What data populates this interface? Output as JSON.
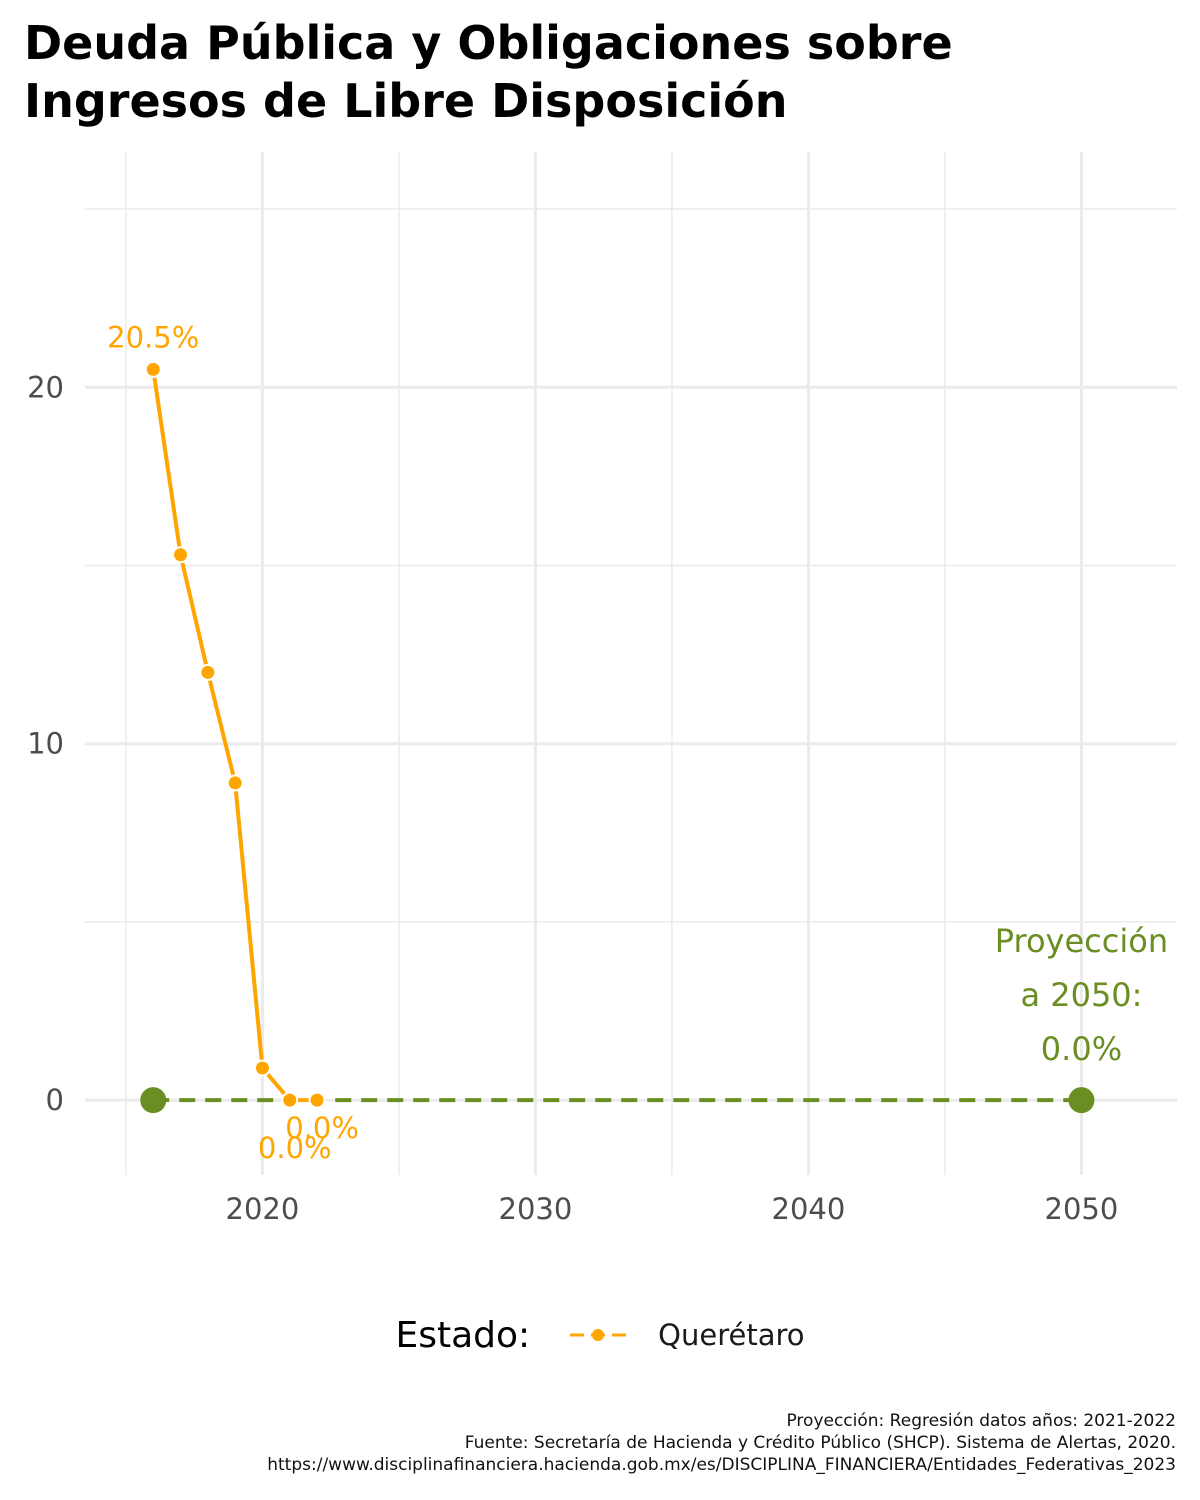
{
  "title_lines": [
    "Deuda Pública y Obligaciones sobre",
    "Ingresos de Libre Disposición"
  ],
  "legend": {
    "title": "Estado:",
    "label": "Querétaro"
  },
  "caption_lines": [
    "Proyección: Regresión datos años: 2021-2022",
    "Fuente: Secretaría de Hacienda y Crédito Público (SHCP). Sistema de Alertas, 2020.",
    "https://www.disciplinafinanciera.hacienda.gob.mx/es/DISCIPLINA_FINANCIERA/Entidades_Federativas_2023"
  ],
  "colors": {
    "series": "#FFA500",
    "projection": "#6B8E23",
    "grid": "#EBEBEB",
    "axis_text": "#4D4D4D"
  },
  "chart_data": {
    "type": "line",
    "title": "Deuda Pública y Obligaciones sobre Ingresos de Libre Disposición",
    "xlabel": "",
    "ylabel": "",
    "xlim": [
      2013.5,
      2053.5
    ],
    "ylim": [
      -2.1,
      26.6
    ],
    "x_ticks": [
      2020,
      2030,
      2040,
      2050
    ],
    "y_ticks": [
      0,
      10,
      20
    ],
    "grid": true,
    "legend_position": "bottom",
    "series": [
      {
        "name": "Querétaro",
        "x": [
          2016,
          2017,
          2018,
          2019,
          2020,
          2021,
          2022
        ],
        "values": [
          20.5,
          15.3,
          12.0,
          8.9,
          0.9,
          0.0,
          0.0
        ]
      }
    ],
    "projection": {
      "x": [
        2016,
        2050
      ],
      "values": [
        0.0,
        0.0
      ],
      "style": "dashed"
    },
    "data_labels": [
      {
        "x": 2016,
        "y": 20.5,
        "text": "20.5%"
      },
      {
        "x": 2021,
        "y": 0.0,
        "text": "0.0%"
      },
      {
        "x": 2022,
        "y": 0.0,
        "text": "0.0%"
      }
    ],
    "annotation": {
      "x": 2050,
      "y": 0.0,
      "lines": [
        "Proyección",
        "a 2050:",
        "0.0%"
      ]
    }
  }
}
